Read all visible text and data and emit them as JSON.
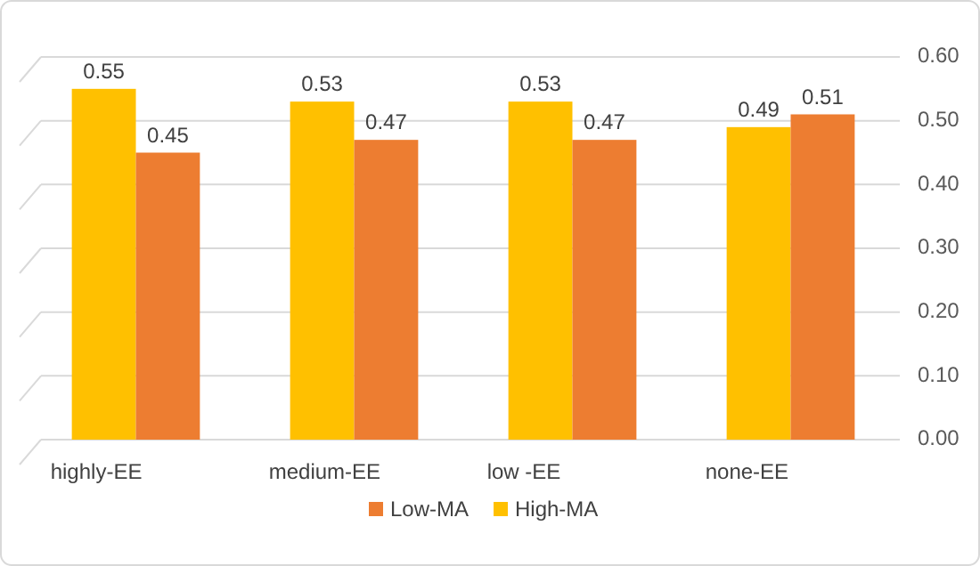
{
  "chart_data": {
    "type": "bar",
    "categories": [
      "highly-EE",
      "medium-EE",
      "low -EE",
      "none-EE"
    ],
    "series": [
      {
        "name": "High-MA",
        "color": "#ffc000",
        "values": [
          0.55,
          0.53,
          0.53,
          0.49
        ]
      },
      {
        "name": "Low-MA",
        "color": "#ed7d31",
        "values": [
          0.45,
          0.47,
          0.47,
          0.51
        ]
      }
    ],
    "ylim": [
      0,
      0.6
    ],
    "yticks": [
      {
        "value": 0,
        "label": "0.00"
      },
      {
        "value": 0.1,
        "label": "0.10"
      },
      {
        "value": 0.2,
        "label": "0.20"
      },
      {
        "value": 0.3,
        "label": "0.30"
      },
      {
        "value": 0.4,
        "label": "0.40"
      },
      {
        "value": 0.5,
        "label": "0.50"
      },
      {
        "value": 0.6,
        "label": "0.60"
      }
    ],
    "grid": "y",
    "data_labels": true,
    "legend": "bottom"
  }
}
